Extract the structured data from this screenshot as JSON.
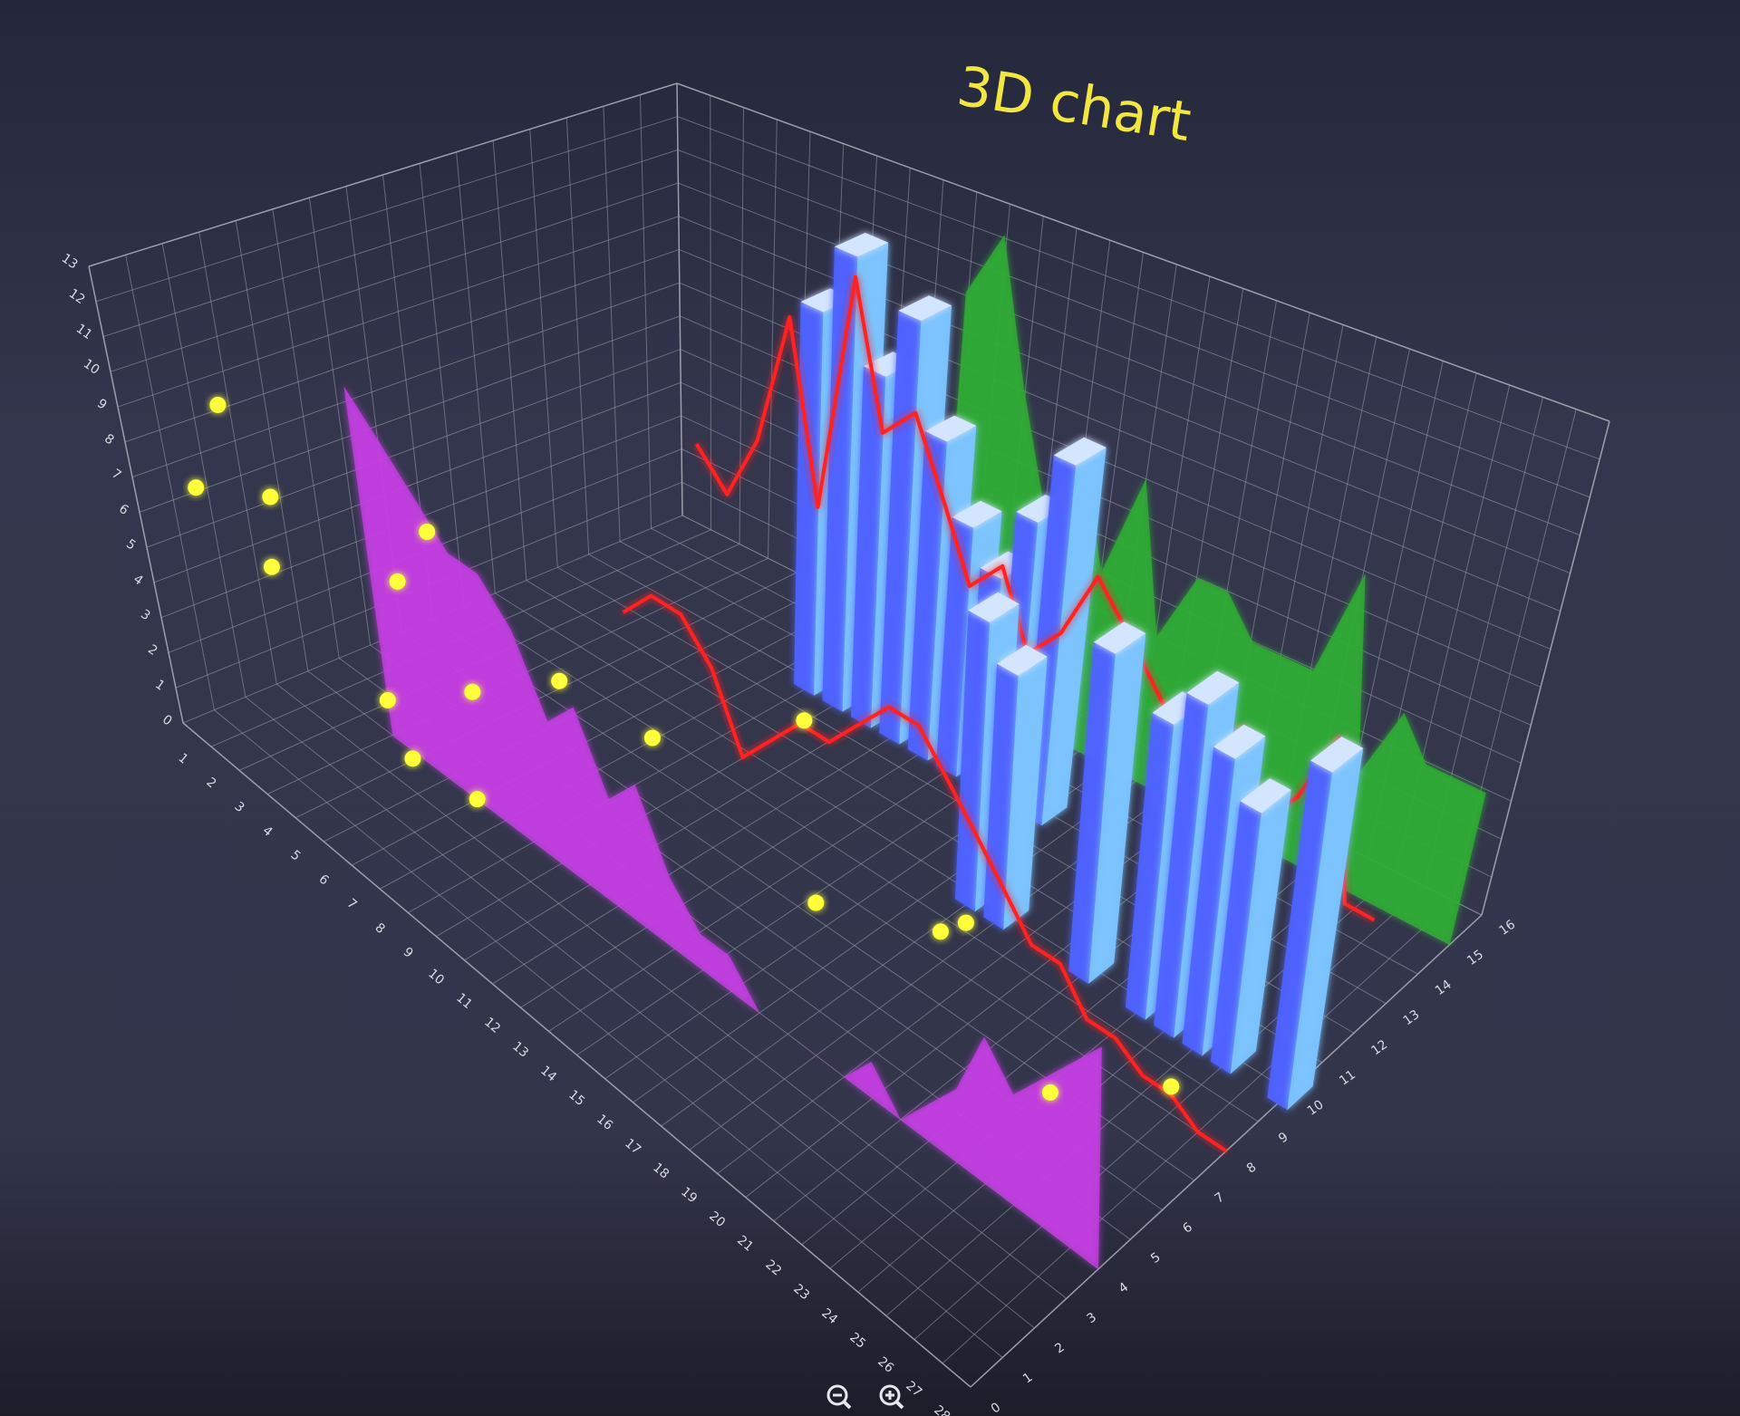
{
  "chart_data": {
    "type": "3d",
    "title": "3D chart",
    "xlim": [
      0,
      28
    ],
    "xticks": [
      1,
      2,
      3,
      4,
      5,
      6,
      7,
      8,
      9,
      10,
      11,
      12,
      13,
      14,
      15,
      16,
      17,
      18,
      19,
      20,
      21,
      22,
      23,
      24,
      25,
      26,
      27,
      28
    ],
    "ylim": [
      0,
      13
    ],
    "yticks": [
      0,
      1,
      2,
      3,
      4,
      5,
      6,
      7,
      8,
      9,
      10,
      11,
      12,
      13
    ],
    "zlim": [
      0,
      16
    ],
    "zticks": [
      0,
      1,
      2,
      3,
      4,
      5,
      6,
      7,
      8,
      9,
      10,
      11,
      12,
      13,
      14,
      15,
      16
    ],
    "grid": true,
    "series": [
      {
        "type": "area",
        "color": "#2fae35",
        "z": 15,
        "x": [
          10,
          11,
          12,
          13,
          14,
          15,
          16,
          17,
          18,
          19,
          20,
          21,
          22,
          23,
          24,
          25,
          26,
          27,
          28
        ],
        "values": [
          11,
          13,
          9,
          6,
          8,
          5,
          8,
          4,
          6,
          6,
          5,
          5,
          5,
          8,
          3,
          5,
          4,
          4,
          4
        ]
      },
      {
        "type": "bar",
        "color": "#4f63ff",
        "z": 13,
        "x": [
          8,
          9,
          10,
          11,
          12,
          13,
          14,
          15,
          16
        ],
        "values": [
          11,
          13,
          10,
          12,
          9,
          7,
          6,
          8,
          10
        ]
      },
      {
        "type": "line",
        "color": "#ff2222",
        "z": 12,
        "x": [
          5,
          6,
          7,
          8,
          9,
          10,
          11,
          12,
          13,
          14,
          15,
          16,
          17,
          18,
          19,
          20,
          21,
          22,
          23,
          24,
          25,
          26,
          27,
          28
        ],
        "values": [
          6,
          5,
          7,
          11,
          6,
          13,
          9,
          10,
          8,
          6,
          7,
          5,
          6,
          8,
          7,
          6,
          5,
          5,
          6,
          4,
          5,
          7,
          3,
          3
        ]
      },
      {
        "type": "bar",
        "color": "#4f63ff",
        "z": 10,
        "x": [
          17,
          18,
          21,
          23,
          24,
          25,
          26,
          28
        ],
        "values": [
          8,
          7,
          9,
          8,
          9,
          8,
          7,
          9
        ]
      },
      {
        "type": "line",
        "color": "#ff2222",
        "z": 8,
        "x": [
          7,
          8,
          9,
          10,
          11,
          12,
          13,
          14,
          15,
          16,
          17,
          18,
          19,
          20,
          21,
          22,
          23,
          24,
          25,
          26,
          27,
          28
        ],
        "values": [
          4,
          5,
          5,
          4,
          2,
          3,
          4,
          4,
          5,
          6,
          6,
          5,
          4,
          3,
          2,
          2,
          1,
          1,
          0.5,
          0.5,
          0,
          0
        ]
      },
      {
        "type": "area",
        "color": "#c63fe6",
        "z": 4,
        "x": [
          3,
          4,
          5,
          6,
          7,
          8,
          9,
          10,
          11,
          12,
          13,
          14,
          15,
          16,
          17,
          18,
          19,
          20,
          21,
          22,
          23,
          24,
          25,
          26,
          27,
          28
        ],
        "values": [
          10,
          9,
          8,
          7,
          7,
          6,
          4,
          5,
          3,
          4,
          2,
          1,
          1,
          0,
          0,
          0,
          0,
          1,
          0,
          1,
          2,
          4,
          3,
          4,
          5,
          6
        ]
      },
      {
        "type": "scatter",
        "color": "#ffff3a",
        "x": [
          1,
          1,
          1,
          2,
          4,
          4,
          3,
          5,
          5,
          6,
          7,
          9,
          12,
          17,
          19,
          21,
          24,
          27
        ],
        "z": [
          2,
          1,
          3,
          2,
          5,
          4,
          4,
          5,
          3,
          4,
          6,
          7,
          9,
          5,
          7,
          6,
          6,
          7
        ],
        "values": [
          9,
          7,
          6,
          5,
          6,
          5,
          1,
          2,
          1,
          0,
          3,
          2,
          3,
          3,
          2,
          4,
          1,
          2
        ]
      }
    ]
  }
}
